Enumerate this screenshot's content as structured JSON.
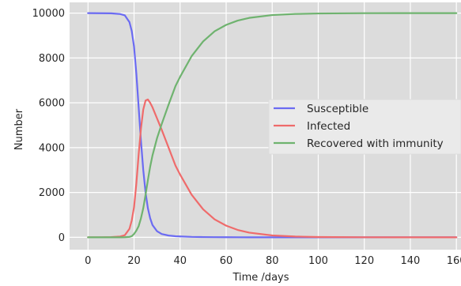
{
  "chart_data": {
    "type": "line",
    "title": "",
    "xlabel": "Time /days",
    "ylabel": "Number",
    "xlim": [
      -8,
      162
    ],
    "ylim": [
      -550,
      10480
    ],
    "xticks": [
      0,
      20,
      40,
      60,
      80,
      100,
      120,
      140,
      160
    ],
    "yticks": [
      0,
      2000,
      4000,
      6000,
      8000,
      10000
    ],
    "grid": true,
    "legend_position": "center-right",
    "colors": {
      "background": "#dcdcdc",
      "grid": "#ffffff",
      "susceptible": "#6b6bf2",
      "infected": "#ef6b6b",
      "recovered": "#6fb36f"
    },
    "x": [
      0,
      5,
      10,
      14,
      16,
      18,
      19,
      20,
      21,
      22,
      23,
      24,
      25,
      26,
      27,
      28,
      30,
      32,
      35,
      38,
      40,
      45,
      50,
      55,
      60,
      65,
      70,
      80,
      90,
      100,
      120,
      140,
      160
    ],
    "series": [
      {
        "name": "Susceptible",
        "values": [
          9999,
          9996,
          9990,
          9960,
          9900,
          9600,
          9200,
          8500,
          7300,
          5800,
          4300,
          3000,
          2000,
          1300,
          850,
          550,
          270,
          150,
          80,
          50,
          40,
          20,
          12,
          8,
          5,
          3,
          2,
          1,
          1,
          0,
          0,
          0,
          0
        ]
      },
      {
        "name": "Infected",
        "values": [
          1,
          3,
          9,
          38,
          95,
          380,
          750,
          1350,
          2400,
          3700,
          4850,
          5700,
          6100,
          6150,
          6000,
          5800,
          5300,
          4800,
          4000,
          3200,
          2800,
          1900,
          1250,
          800,
          520,
          330,
          210,
          85,
          35,
          15,
          3,
          1,
          0
        ]
      },
      {
        "name": "Recovered with immunity",
        "values": [
          0,
          1,
          1,
          2,
          5,
          20,
          50,
          150,
          300,
          500,
          850,
          1300,
          1900,
          2550,
          3150,
          3650,
          4430,
          5050,
          5920,
          6750,
          7160,
          8080,
          8738,
          9192,
          9475,
          9667,
          9788,
          9914,
          9964,
          9985,
          9997,
          9999,
          10000
        ]
      }
    ]
  }
}
